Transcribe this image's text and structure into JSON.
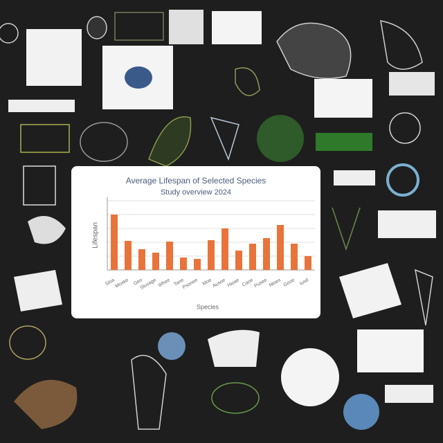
{
  "chart_data": {
    "type": "bar",
    "title": "Average Lifespan of Selected Species",
    "subtitle": "Study overview 2024",
    "ylabel": "Lifespan",
    "xlabel": "Species",
    "categories": [
      "Sloa",
      "Moxke",
      "Geo",
      "Sluvage",
      "Whee",
      "Tane",
      "Psonee",
      "Moe",
      "Ausoe",
      "Hioae",
      "Caoe",
      "Pusee",
      "Nloes",
      "Gooe",
      "Iusd"
    ],
    "values": [
      80,
      42,
      30,
      25,
      41,
      18,
      16,
      43,
      60,
      28,
      38,
      46,
      65,
      38,
      20
    ],
    "color": "#e8743b",
    "ylim": [
      0,
      100
    ],
    "yticks": [
      0,
      20,
      40,
      60,
      80,
      100
    ],
    "grid": true
  }
}
